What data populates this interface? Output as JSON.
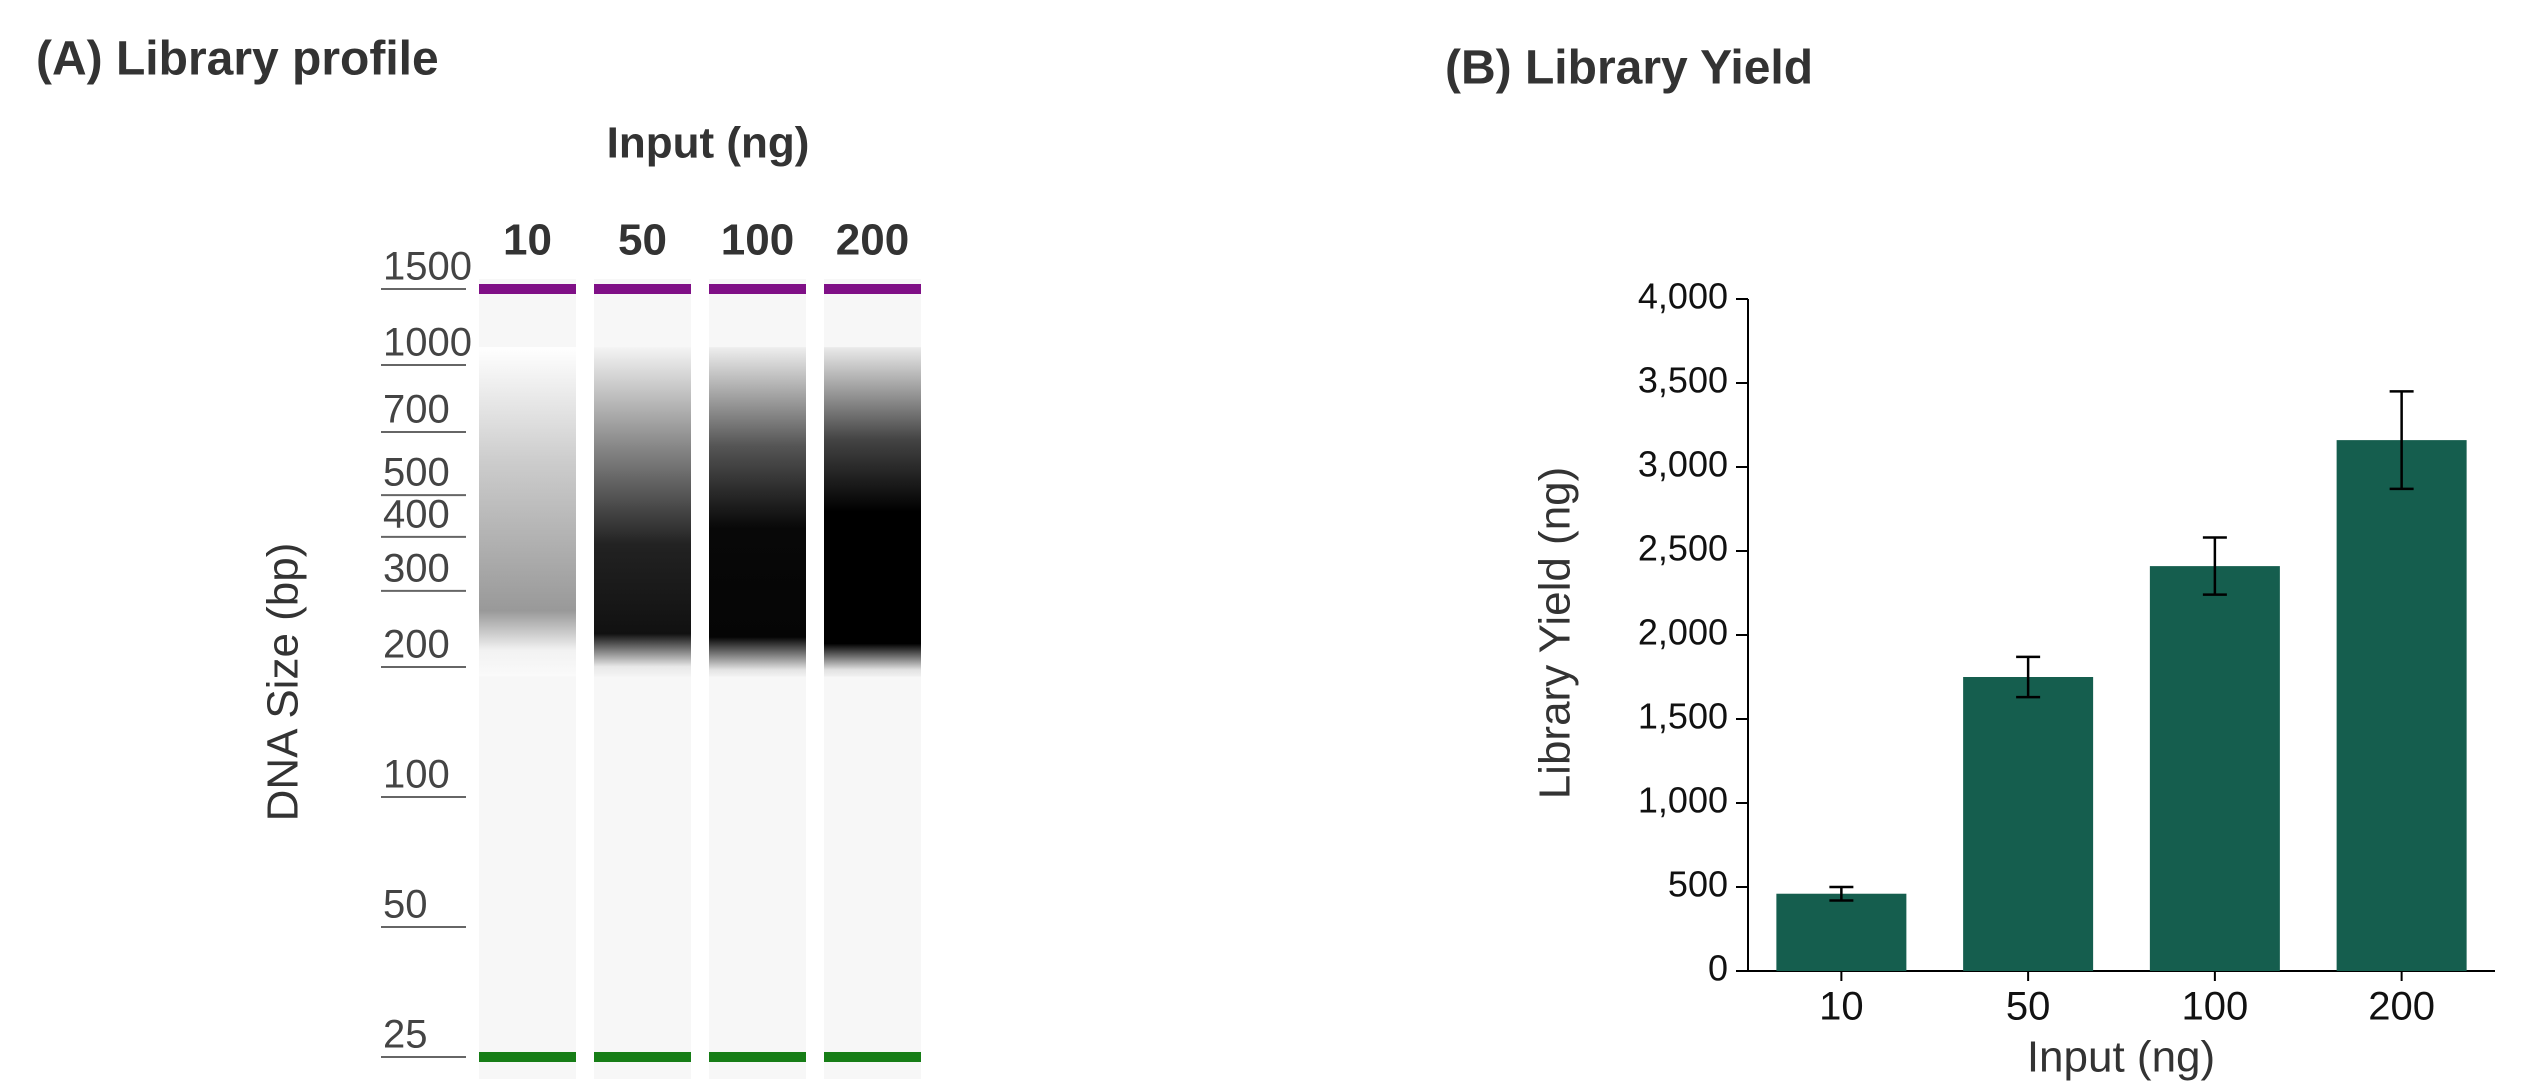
{
  "chart_data": [
    {
      "type": "gel",
      "title": "(A) Library profile",
      "xlabel": "Input (ng)",
      "ylabel": "DNA Size (bp)",
      "categories": [
        "10",
        "50",
        "100",
        "200"
      ],
      "log_scale": true,
      "ylim": [
        25,
        1500
      ],
      "yticks": [
        25,
        50,
        100,
        200,
        300,
        400,
        500,
        700,
        1000,
        1500
      ],
      "upper_marker_color": "#7f0f86",
      "lower_marker_color": "#167d16"
    },
    {
      "type": "bar",
      "title": "(B) Library Yield",
      "xlabel": "Input (ng)",
      "ylabel": "Library Yield (ng)",
      "categories": [
        "10",
        "50",
        "100",
        "200"
      ],
      "values": [
        460,
        1750,
        2410,
        3160
      ],
      "errors": [
        40,
        120,
        170,
        290
      ],
      "color": "#155e4e",
      "ylim": [
        0,
        4000
      ],
      "yticks": [
        0,
        500,
        {
          "value": 1000,
          "label": "1,000"
        },
        {
          "value": 1500,
          "label": "1,500"
        },
        {
          "value": 2000,
          "label": "2,000"
        },
        {
          "value": 2500,
          "label": "2,500"
        },
        {
          "value": 3000,
          "label": "3,000"
        },
        {
          "value": 3500,
          "label": "3,500"
        },
        {
          "value": 4000,
          "label": "4,000"
        }
      ]
    }
  ]
}
